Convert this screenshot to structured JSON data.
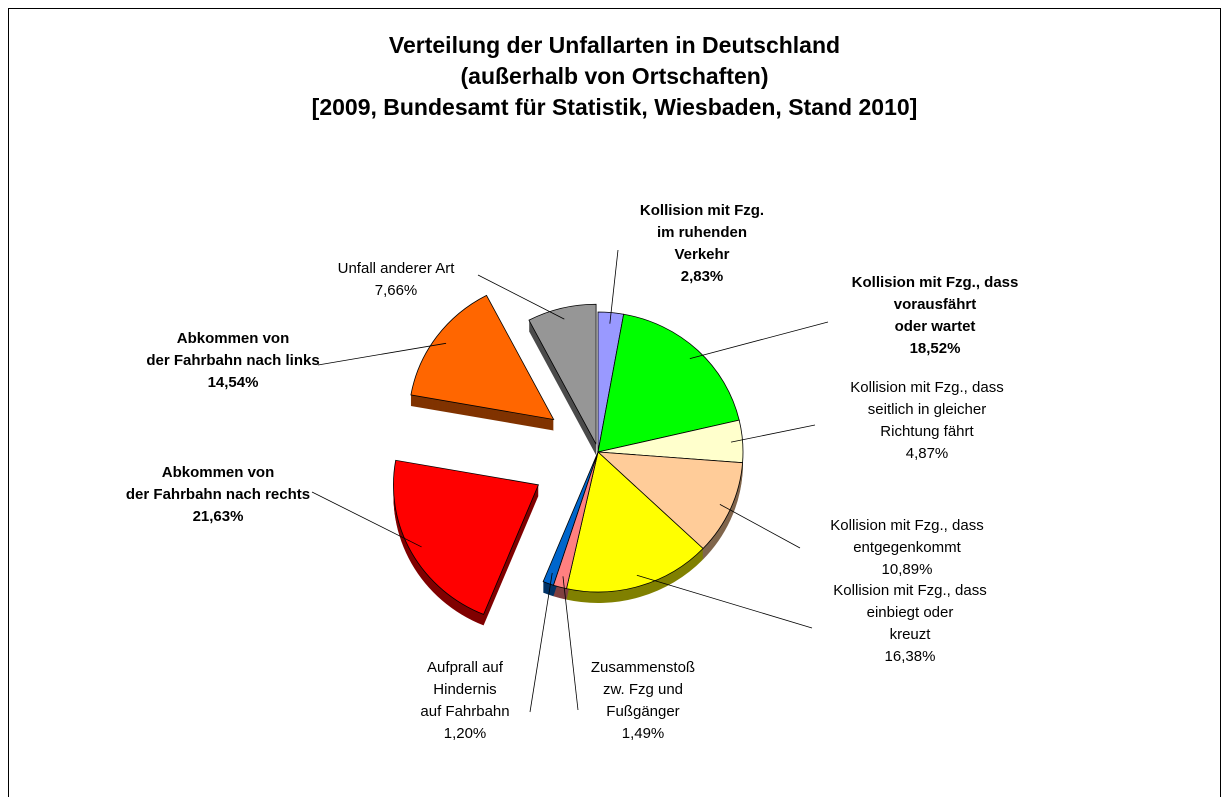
{
  "chart_data": {
    "type": "pie",
    "title": "Verteilung der Unfallarten in Deutschland\n(außerhalb von Ortschaften)\n[2009, Bundesamt für Statistik, Wiesbaden, Stand 2010]",
    "categories": [
      "Kollision mit Fzg.\nim ruhenden\nVerkehr",
      "Kollision mit Fzg., dass\nvorausfährt\noder wartet",
      "Kollision mit Fzg., dass\nseitlich in gleicher\nRichtung fährt",
      "Kollision mit Fzg., dass\nentgegenkommt",
      "Kollision mit Fzg., dass\neinbiegt oder\nkreuzt",
      "Zusammenstoß\nzw. Fzg und\nFußgänger",
      "Aufprall auf\nHindernis\nauf Fahrbahn",
      "Abkommen von\nder Fahrbahn nach rechts",
      "Abkommen von\nder Fahrbahn nach links",
      "Unfall anderer Art"
    ],
    "values": [
      2.83,
      18.52,
      4.87,
      10.89,
      16.38,
      1.49,
      1.2,
      21.63,
      14.54,
      7.66
    ],
    "value_labels": [
      "2,83%",
      "18,52%",
      "4,87%",
      "10,89%",
      "16,38%",
      "1,49%",
      "1,20%",
      "21,63%",
      "14,54%",
      "7,66%"
    ],
    "colors": [
      "#9999ff",
      "#00ff00",
      "#ffffcc",
      "#ffcc99",
      "#ffff00",
      "#ff8080",
      "#0066cc",
      "#ff0000",
      "#ff6600",
      "#969696"
    ]
  }
}
